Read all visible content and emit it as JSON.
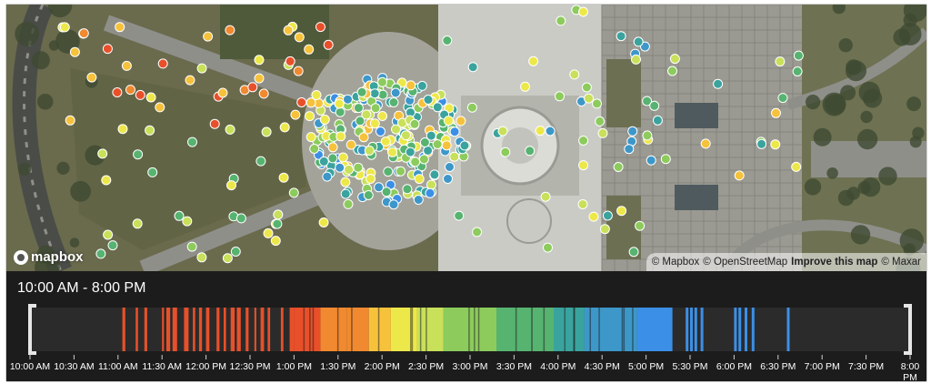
{
  "map": {
    "logo_text": "mapbox",
    "attribution": {
      "mapbox": "© Mapbox",
      "osm": "© OpenStreetMap",
      "improve": "Improve this map",
      "maxar": "© Maxar"
    },
    "imagery_colors": {
      "lawn": "#6a6a4d",
      "pavement": "#8f8f8a",
      "roof": "#c9cbc4",
      "road": "#4a4c48",
      "trees": "#3f4a32",
      "plaza": "#a3a39a"
    }
  },
  "timeline": {
    "range_label": "10:00 AM - 8:00 PM",
    "tick_labels": [
      "10:00 AM",
      "10:30 AM",
      "11:00 AM",
      "11:30 AM",
      "12:00 PM",
      "12:30 PM",
      "1:00 PM",
      "1:30 PM",
      "2:00 PM",
      "2:30 PM",
      "3:00 PM",
      "3:30 PM",
      "4:00 PM",
      "4:30 PM",
      "5:00 PM",
      "5:30 PM",
      "6:00 PM",
      "6:30 PM",
      "7:00 PM",
      "7:30 PM",
      "8:00 PM"
    ],
    "color_stops": [
      "#e8502a",
      "#f0892f",
      "#f6c23c",
      "#ede84a",
      "#c8e05a",
      "#8ccb5c",
      "#57b370",
      "#3aa39e",
      "#3d97c9",
      "#3c8fe6"
    ],
    "dot_outline": "#ffffff"
  }
}
